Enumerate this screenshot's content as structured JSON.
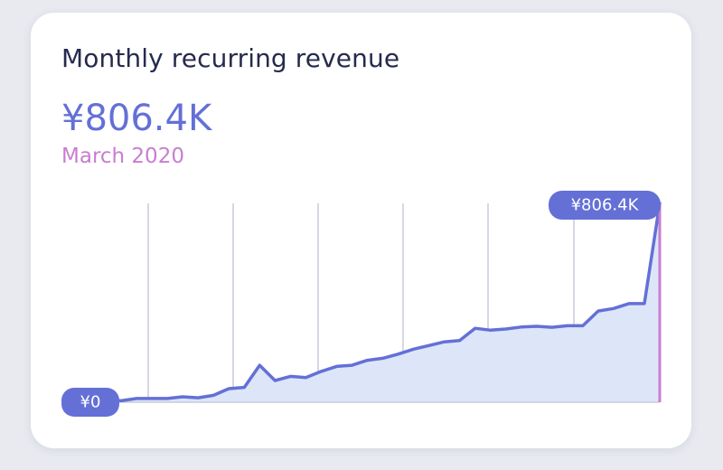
{
  "card": {
    "title": "Monthly recurring revenue",
    "current_value": "¥806.4K",
    "current_period": "March 2020"
  },
  "colors": {
    "line": "#6470d6",
    "area": "#dce6f8",
    "grid": "#c9ccda",
    "marker": "#c87ed0",
    "badge": "#6470d6"
  },
  "chart_data": {
    "type": "area",
    "title": "Monthly recurring revenue",
    "xlabel": "",
    "ylabel": "",
    "ylim": [
      0,
      806.4
    ],
    "unit": "¥K",
    "grid": "vertical",
    "start_label": "¥0",
    "end_label": "¥806.4K",
    "values": [
      0,
      9,
      6,
      15,
      15,
      15,
      22,
      18,
      28,
      55,
      60,
      150,
      88,
      105,
      100,
      125,
      145,
      150,
      170,
      178,
      195,
      215,
      230,
      245,
      250,
      300,
      292,
      297,
      305,
      308,
      304,
      310,
      310,
      370,
      380,
      400,
      400,
      806.4
    ]
  }
}
